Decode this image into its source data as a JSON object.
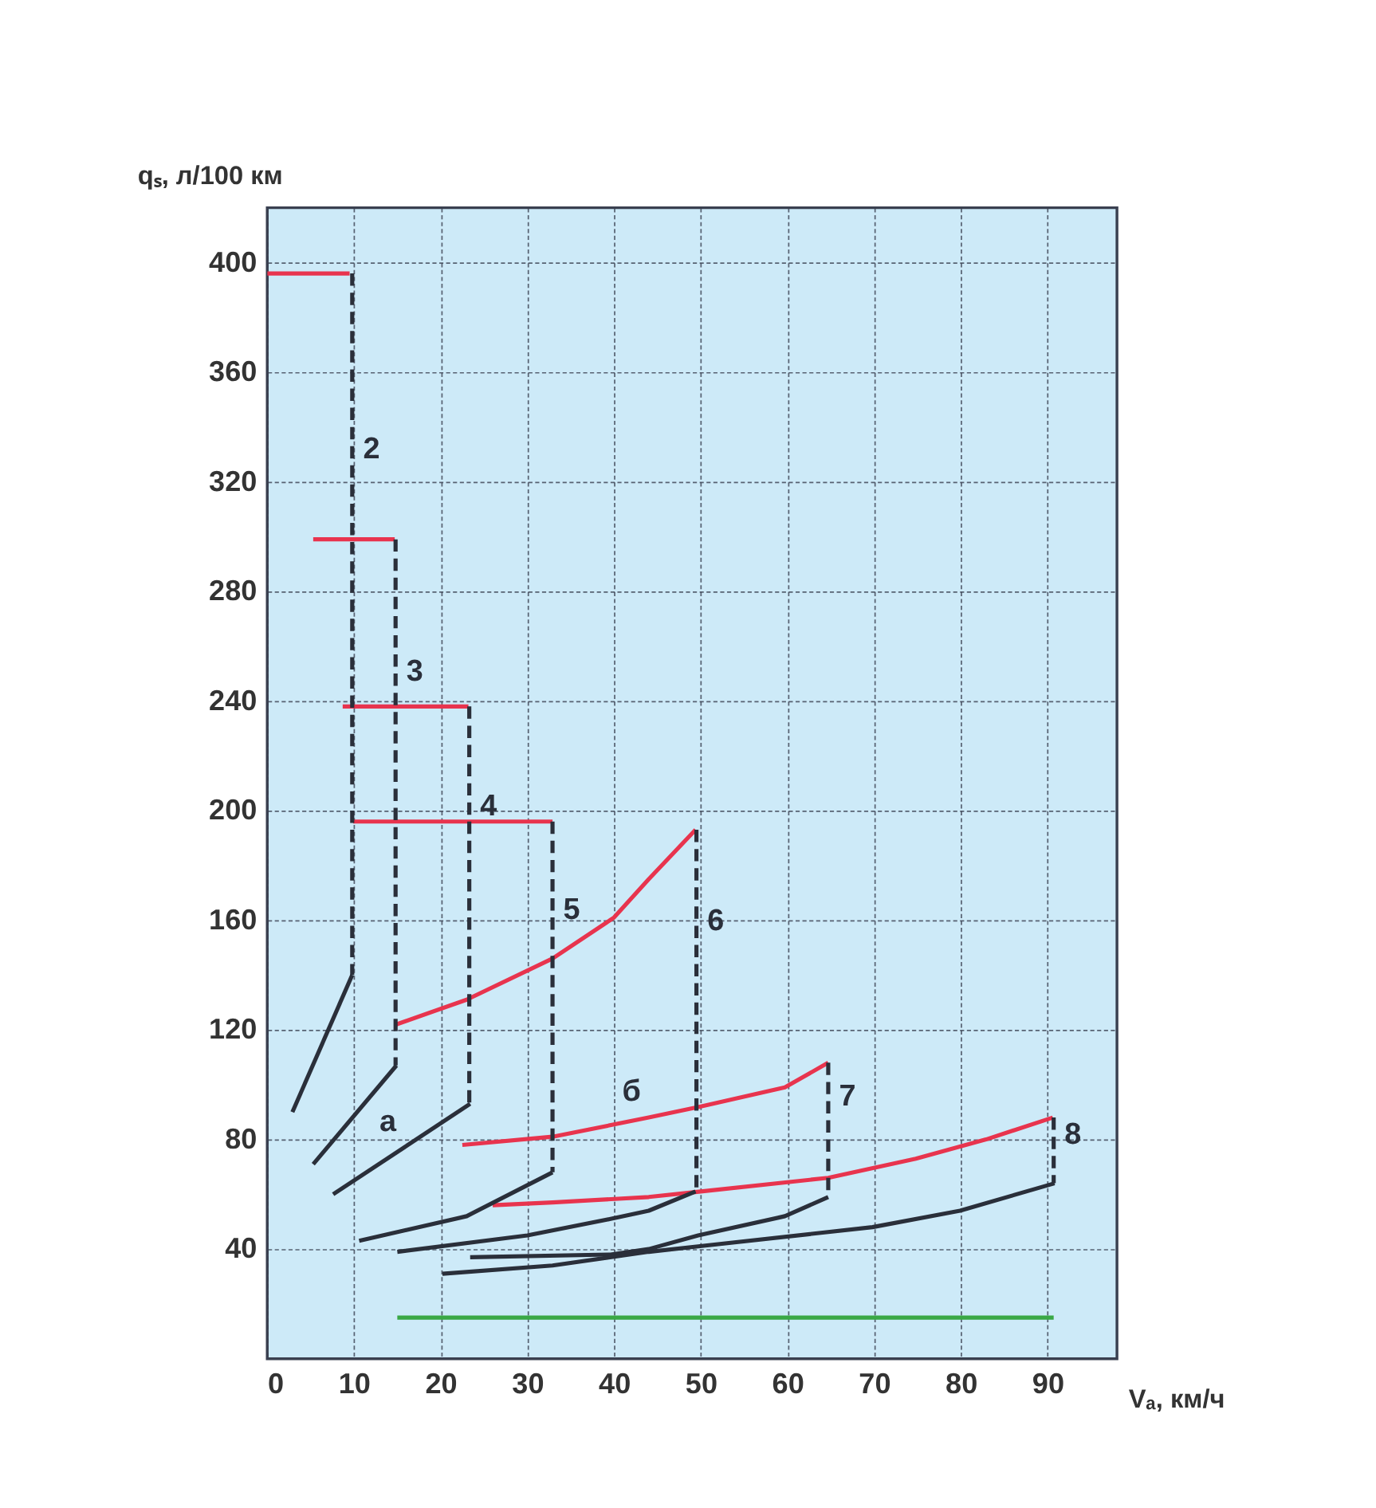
{
  "chart_data": {
    "type": "line",
    "xlabel": "Vₐ, км/ч",
    "ylabel": "qₛ, л/100 км",
    "xlim": [
      0,
      98
    ],
    "xticks": [
      0,
      10,
      20,
      30,
      40,
      50,
      60,
      70,
      80,
      90
    ],
    "ylim": [
      0,
      420
    ],
    "yticks": [
      40,
      80,
      120,
      160,
      200,
      240,
      280,
      320,
      360,
      400
    ],
    "grid": true,
    "marker": "none",
    "line_style": "solid",
    "series": [
      {
        "color": "#e8344e",
        "x": [
          0,
          9.5
        ],
        "values": [
          396,
          396
        ]
      },
      {
        "color": "#e8344e",
        "x": [
          5.3,
          14.7
        ],
        "values": [
          299,
          299
        ]
      },
      {
        "color": "#e8344e",
        "x": [
          8.7,
          23.2
        ],
        "values": [
          238,
          238
        ]
      },
      {
        "color": "#e8344e",
        "x": [
          9.9,
          32.9
        ],
        "values": [
          196,
          196
        ]
      },
      {
        "color": "#e8344e",
        "x": [
          14.9,
          23,
          32.9,
          40,
          44,
          49.4
        ],
        "values": [
          122,
          131,
          146,
          161,
          175,
          193
        ]
      },
      {
        "name": "б",
        "color": "#e8344e",
        "x": [
          22.5,
          32.9,
          44,
          50,
          59.7,
          64.7
        ],
        "values": [
          78,
          81,
          88,
          92,
          99,
          108
        ]
      },
      {
        "color": "#e8344e",
        "x": [
          26,
          32.9,
          44,
          50,
          64.7,
          74.8,
          82.9,
          90.6
        ],
        "values": [
          56,
          57,
          59,
          61,
          66,
          73,
          80,
          88
        ]
      },
      {
        "color": "#2a2f3a",
        "x": [
          2.9,
          9.8
        ],
        "values": [
          90,
          140
        ]
      },
      {
        "color": "#2a2f3a",
        "x": [
          5.3,
          14.9
        ],
        "values": [
          71,
          107
        ]
      },
      {
        "name": "а",
        "color": "#2a2f3a",
        "x": [
          7.6,
          23.4
        ],
        "values": [
          60,
          93
        ]
      },
      {
        "color": "#2a2f3a",
        "x": [
          10.6,
          23,
          32.9
        ],
        "values": [
          43,
          52,
          68
        ]
      },
      {
        "color": "#2a2f3a",
        "x": [
          15,
          30,
          39.6,
          44,
          49.4
        ],
        "values": [
          39,
          45,
          51,
          54,
          61
        ]
      },
      {
        "color": "#2a2f3a",
        "x": [
          23.4,
          39.6,
          44,
          49.7,
          59.7,
          64.7
        ],
        "values": [
          37,
          38,
          40,
          45,
          52,
          59
        ]
      },
      {
        "color": "#2a2f3a",
        "x": [
          20.2,
          32.9,
          44,
          49.7,
          69.8,
          79.9,
          90.8
        ],
        "values": [
          31,
          34,
          39,
          41,
          48,
          54,
          64
        ]
      },
      {
        "name": "2",
        "color": "#2a2f3a",
        "line_style": "dashed",
        "x": [
          9.8,
          9.8
        ],
        "values": [
          396,
          140
        ]
      },
      {
        "name": "3",
        "color": "#2a2f3a",
        "line_style": "dashed",
        "x": [
          14.8,
          14.8
        ],
        "values": [
          299,
          107
        ]
      },
      {
        "name": "4",
        "color": "#2a2f3a",
        "line_style": "dashed",
        "x": [
          23.3,
          23.3
        ],
        "values": [
          238,
          93
        ]
      },
      {
        "name": "5",
        "color": "#2a2f3a",
        "line_style": "dashed",
        "x": [
          32.9,
          32.9
        ],
        "values": [
          196,
          68
        ]
      },
      {
        "name": "6",
        "color": "#2a2f3a",
        "line_style": "dashed",
        "x": [
          49.5,
          49.5
        ],
        "values": [
          193,
          61
        ]
      },
      {
        "name": "7",
        "color": "#2a2f3a",
        "line_style": "dashed",
        "x": [
          64.7,
          64.7
        ],
        "values": [
          108,
          59
        ]
      },
      {
        "name": "8",
        "color": "#2a2f3a",
        "line_style": "dashed",
        "x": [
          90.7,
          90.7
        ],
        "values": [
          88,
          64
        ]
      },
      {
        "color": "#3aa845",
        "x": [
          15,
          90.7
        ],
        "values": [
          15,
          15
        ]
      }
    ]
  }
}
